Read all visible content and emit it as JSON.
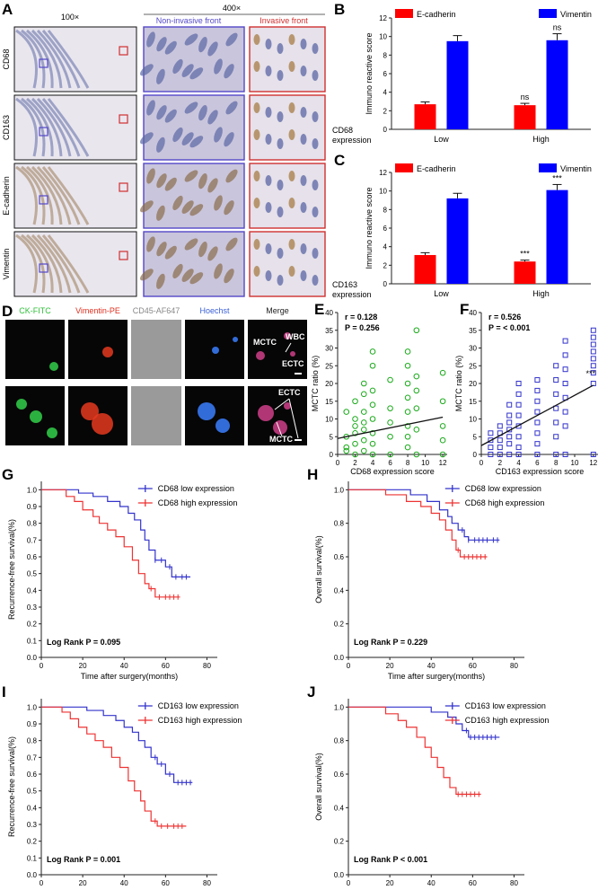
{
  "panel_letters": [
    "A",
    "B",
    "C",
    "D",
    "E",
    "F",
    "G",
    "H",
    "I",
    "J"
  ],
  "panel_a": {
    "header_low": "100×",
    "header_high": "400×",
    "sub_noninvasive": "Non-invasive front",
    "sub_invasive": "Invasive front",
    "rows": [
      "CD68",
      "CD163",
      "E-cadherin",
      "Vimentin"
    ],
    "colors": {
      "tissue_bg": "#e9e6ee",
      "tissue_blue": "#5f6aa6",
      "tissue_brown": "#9a7a55",
      "box_blue": "#5448c8",
      "box_red": "#d03030"
    }
  },
  "panel_d": {
    "channels": [
      "CK-FITC",
      "Vimentin-PE",
      "CD45-AF647",
      "Hoechst",
      "Merge"
    ],
    "channel_colors": [
      "#2fbf3a",
      "#e03020",
      "#888888",
      "#3a5fd8",
      "#222222"
    ],
    "labels_row1": [
      "WBC",
      "MCTC",
      "ECTC"
    ],
    "labels_row2": [
      "ECTC",
      "MCTC"
    ]
  },
  "chart_data": [
    {
      "id": "B",
      "type": "bar",
      "categories": [
        "Low",
        "High"
      ],
      "series": [
        {
          "name": "E-cadherin",
          "color": "#ff0000",
          "values": [
            2.7,
            2.6
          ],
          "errors": [
            0.25,
            0.2
          ]
        },
        {
          "name": "Vimentin",
          "color": "#0000ff",
          "values": [
            9.5,
            9.6
          ],
          "errors": [
            0.6,
            0.7
          ]
        }
      ],
      "annotations": [
        {
          "series": 1,
          "cat": 1,
          "text": "ns"
        },
        {
          "series": 0,
          "cat": 1,
          "text": "ns"
        }
      ],
      "ylabel": "Immuno reactive score",
      "xlabel": "CD68 expression",
      "ylim": [
        0,
        12
      ],
      "yticks": [
        0,
        2,
        4,
        6,
        8,
        10,
        12
      ],
      "legend": "top"
    },
    {
      "id": "C",
      "type": "bar",
      "categories": [
        "Low",
        "High"
      ],
      "series": [
        {
          "name": "E-cadherin",
          "color": "#ff0000",
          "values": [
            3.1,
            2.4
          ],
          "errors": [
            0.25,
            0.15
          ]
        },
        {
          "name": "Vimentin",
          "color": "#0000ff",
          "values": [
            9.2,
            10.1
          ],
          "errors": [
            0.55,
            0.6
          ]
        }
      ],
      "annotations": [
        {
          "series": 1,
          "cat": 1,
          "text": "***"
        },
        {
          "series": 0,
          "cat": 1,
          "text": "***"
        }
      ],
      "ylabel": "Immuno reactive score",
      "xlabel": "CD163 expression",
      "ylim": [
        0,
        12
      ],
      "yticks": [
        0,
        2,
        4,
        6,
        8,
        10,
        12
      ],
      "legend": "top"
    },
    {
      "id": "E",
      "type": "scatter",
      "color": "#1aaa1a",
      "stat_r": "0.128",
      "stat_p": "0.256",
      "xlabel": "CD68 expression score",
      "ylabel": "MCTC ratio (%)",
      "xlim": [
        0,
        12.5
      ],
      "ylim": [
        0,
        40
      ],
      "xticks": [
        0,
        2,
        4,
        6,
        8,
        10,
        12
      ],
      "yticks": [
        0,
        5,
        10,
        15,
        20,
        25,
        30,
        35,
        40
      ],
      "fit": {
        "x": [
          0,
          12
        ],
        "y": [
          4.5,
          10.5
        ]
      },
      "points": [
        [
          1,
          1
        ],
        [
          1,
          5
        ],
        [
          1,
          12
        ],
        [
          1,
          2
        ],
        [
          2,
          0
        ],
        [
          2,
          3
        ],
        [
          2,
          6
        ],
        [
          2,
          10
        ],
        [
          2,
          15
        ],
        [
          2,
          8
        ],
        [
          3,
          1
        ],
        [
          3,
          4
        ],
        [
          3,
          7
        ],
        [
          3,
          12
        ],
        [
          3,
          17
        ],
        [
          3,
          20
        ],
        [
          3,
          9
        ],
        [
          4,
          0
        ],
        [
          4,
          3
        ],
        [
          4,
          6
        ],
        [
          4,
          10
        ],
        [
          4,
          14
        ],
        [
          4,
          18
        ],
        [
          4,
          25
        ],
        [
          4,
          29
        ],
        [
          6,
          0
        ],
        [
          6,
          5
        ],
        [
          6,
          9
        ],
        [
          6,
          13
        ],
        [
          6,
          21
        ],
        [
          8,
          2
        ],
        [
          8,
          5
        ],
        [
          8,
          8
        ],
        [
          8,
          12
        ],
        [
          8,
          16
        ],
        [
          8,
          20
        ],
        [
          8,
          25
        ],
        [
          8,
          29
        ],
        [
          9,
          0
        ],
        [
          9,
          7
        ],
        [
          9,
          13
        ],
        [
          9,
          18
        ],
        [
          9,
          22
        ],
        [
          9,
          35
        ],
        [
          12,
          0
        ],
        [
          12,
          4
        ],
        [
          12,
          8
        ],
        [
          12,
          15
        ],
        [
          12,
          23
        ]
      ]
    },
    {
      "id": "F",
      "type": "scatter",
      "color": "#3333cc",
      "stat_r": "0.526",
      "stat_p": "< 0.001",
      "annotation": "***",
      "xlabel": "CD163 expression score",
      "ylabel": "MCTC ratio (%)",
      "xlim": [
        0,
        12.5
      ],
      "ylim": [
        0,
        40
      ],
      "xticks": [
        0,
        2,
        4,
        6,
        8,
        10,
        12
      ],
      "yticks": [
        0,
        5,
        10,
        15,
        20,
        25,
        30,
        35,
        40
      ],
      "fit": {
        "x": [
          0,
          12
        ],
        "y": [
          2.5,
          19.5
        ]
      },
      "points": [
        [
          1,
          0
        ],
        [
          1,
          2
        ],
        [
          1,
          4
        ],
        [
          1,
          6
        ],
        [
          2,
          0
        ],
        [
          2,
          2
        ],
        [
          2,
          4
        ],
        [
          2,
          6
        ],
        [
          2,
          8
        ],
        [
          3,
          0
        ],
        [
          3,
          3
        ],
        [
          3,
          5
        ],
        [
          3,
          7
        ],
        [
          3,
          9
        ],
        [
          3,
          11
        ],
        [
          3,
          14
        ],
        [
          4,
          0
        ],
        [
          4,
          2
        ],
        [
          4,
          5
        ],
        [
          4,
          8
        ],
        [
          4,
          11
        ],
        [
          4,
          14
        ],
        [
          4,
          17
        ],
        [
          4,
          20
        ],
        [
          6,
          0
        ],
        [
          6,
          3
        ],
        [
          6,
          6
        ],
        [
          6,
          9
        ],
        [
          6,
          12
        ],
        [
          6,
          15
        ],
        [
          6,
          18
        ],
        [
          6,
          21
        ],
        [
          8,
          0
        ],
        [
          8,
          5
        ],
        [
          8,
          9
        ],
        [
          8,
          13
        ],
        [
          8,
          17
        ],
        [
          8,
          21
        ],
        [
          8,
          25
        ],
        [
          9,
          0
        ],
        [
          9,
          8
        ],
        [
          9,
          12
        ],
        [
          9,
          16
        ],
        [
          9,
          20
        ],
        [
          9,
          24
        ],
        [
          9,
          28
        ],
        [
          9,
          32
        ],
        [
          12,
          0
        ],
        [
          12,
          20
        ],
        [
          12,
          23
        ],
        [
          12,
          25
        ],
        [
          12,
          27
        ],
        [
          12,
          29
        ],
        [
          12,
          31
        ],
        [
          12,
          33
        ],
        [
          12,
          35
        ]
      ]
    },
    {
      "id": "G",
      "type": "line",
      "ylabel": "Recurrence-free survival(%)",
      "xlabel": "Time after surgery(months)",
      "xlim": [
        0,
        85
      ],
      "ylim": [
        0,
        1.05
      ],
      "xticks": [
        0,
        20,
        40,
        60,
        80
      ],
      "yticks": [
        0,
        0.1,
        0.2,
        0.3,
        0.4,
        0.5,
        0.6,
        0.7,
        0.8,
        0.9,
        1.0
      ],
      "logrank": "Log Rank P = 0.095",
      "series": [
        {
          "name": "CD68 low expression",
          "color": "#3333cc",
          "steps": [
            [
              0,
              1
            ],
            [
              18,
              0.98
            ],
            [
              25,
              0.96
            ],
            [
              32,
              0.93
            ],
            [
              38,
              0.9
            ],
            [
              42,
              0.86
            ],
            [
              45,
              0.82
            ],
            [
              48,
              0.76
            ],
            [
              50,
              0.7
            ],
            [
              52,
              0.64
            ],
            [
              55,
              0.58
            ],
            [
              60,
              0.54
            ],
            [
              63,
              0.48
            ],
            [
              72,
              0.48
            ]
          ],
          "censor": [
            55,
            58,
            62,
            65,
            68,
            70
          ]
        },
        {
          "name": "CD68 high expression",
          "color": "#ee3333",
          "steps": [
            [
              0,
              1
            ],
            [
              12,
              0.96
            ],
            [
              16,
              0.93
            ],
            [
              20,
              0.88
            ],
            [
              25,
              0.84
            ],
            [
              28,
              0.8
            ],
            [
              32,
              0.76
            ],
            [
              36,
              0.72
            ],
            [
              40,
              0.66
            ],
            [
              44,
              0.58
            ],
            [
              47,
              0.5
            ],
            [
              50,
              0.44
            ],
            [
              52,
              0.41
            ],
            [
              55,
              0.36
            ],
            [
              67,
              0.36
            ]
          ],
          "censor": [
            53,
            57,
            60,
            62,
            64,
            66
          ]
        }
      ]
    },
    {
      "id": "H",
      "type": "line",
      "ylabel": "Overall survival(%)",
      "xlabel": "Time after surgery(months)",
      "xlim": [
        0,
        85
      ],
      "ylim": [
        0,
        1.05
      ],
      "xticks": [
        0,
        20,
        40,
        60,
        80
      ],
      "yticks": [
        0,
        0.2,
        0.4,
        0.6,
        0.8,
        1.0
      ],
      "logrank": "Log Rank P = 0.229",
      "series": [
        {
          "name": "CD68 low expression",
          "color": "#3333cc",
          "steps": [
            [
              0,
              1
            ],
            [
              30,
              0.97
            ],
            [
              38,
              0.93
            ],
            [
              44,
              0.88
            ],
            [
              48,
              0.84
            ],
            [
              50,
              0.8
            ],
            [
              53,
              0.76
            ],
            [
              56,
              0.72
            ],
            [
              58,
              0.7
            ],
            [
              73,
              0.7
            ]
          ],
          "censor": [
            55,
            58,
            61,
            63,
            65,
            67,
            70,
            72
          ]
        },
        {
          "name": "CD68 high expression",
          "color": "#ee3333",
          "steps": [
            [
              0,
              1
            ],
            [
              18,
              0.97
            ],
            [
              28,
              0.93
            ],
            [
              35,
              0.9
            ],
            [
              40,
              0.86
            ],
            [
              44,
              0.82
            ],
            [
              47,
              0.76
            ],
            [
              50,
              0.7
            ],
            [
              52,
              0.64
            ],
            [
              54,
              0.6
            ],
            [
              67,
              0.6
            ]
          ],
          "censor": [
            53,
            56,
            58,
            60,
            62,
            64,
            66
          ]
        }
      ]
    },
    {
      "id": "I",
      "type": "line",
      "ylabel": "Recurrence-free survival(%)",
      "xlabel": "Time after surgery(months)",
      "xlim": [
        0,
        85
      ],
      "ylim": [
        0,
        1.05
      ],
      "xticks": [
        0,
        20,
        40,
        60,
        80
      ],
      "yticks": [
        0,
        0.1,
        0.2,
        0.3,
        0.4,
        0.5,
        0.6,
        0.7,
        0.8,
        0.9,
        1.0
      ],
      "logrank": "Log Rank P = 0.001",
      "series": [
        {
          "name": "CD163 low expression",
          "color": "#3333cc",
          "steps": [
            [
              0,
              1
            ],
            [
              22,
              0.98
            ],
            [
              30,
              0.95
            ],
            [
              36,
              0.92
            ],
            [
              40,
              0.88
            ],
            [
              44,
              0.85
            ],
            [
              47,
              0.8
            ],
            [
              50,
              0.76
            ],
            [
              53,
              0.7
            ],
            [
              56,
              0.66
            ],
            [
              60,
              0.6
            ],
            [
              64,
              0.55
            ],
            [
              73,
              0.55
            ]
          ],
          "censor": [
            55,
            58,
            62,
            66,
            68,
            70,
            72
          ]
        },
        {
          "name": "CD163 high expression",
          "color": "#ee3333",
          "steps": [
            [
              0,
              1
            ],
            [
              10,
              0.97
            ],
            [
              14,
              0.93
            ],
            [
              18,
              0.88
            ],
            [
              22,
              0.84
            ],
            [
              26,
              0.8
            ],
            [
              30,
              0.76
            ],
            [
              34,
              0.7
            ],
            [
              38,
              0.64
            ],
            [
              42,
              0.56
            ],
            [
              45,
              0.5
            ],
            [
              48,
              0.44
            ],
            [
              50,
              0.38
            ],
            [
              53,
              0.32
            ],
            [
              56,
              0.29
            ],
            [
              70,
              0.29
            ]
          ],
          "censor": [
            55,
            58,
            61,
            64,
            66,
            68
          ]
        }
      ]
    },
    {
      "id": "J",
      "type": "line",
      "ylabel": "Overall survival(%)",
      "xlabel": "Time after surgery(months)",
      "xlim": [
        0,
        85
      ],
      "ylim": [
        0,
        1.05
      ],
      "xticks": [
        0,
        20,
        40,
        60,
        80
      ],
      "yticks": [
        0,
        0.2,
        0.4,
        0.6,
        0.8,
        1.0
      ],
      "logrank": "Log Rank P < 0.001",
      "series": [
        {
          "name": "CD163 low expression",
          "color": "#3333cc",
          "steps": [
            [
              0,
              1
            ],
            [
              40,
              0.97
            ],
            [
              48,
              0.94
            ],
            [
              52,
              0.9
            ],
            [
              55,
              0.86
            ],
            [
              58,
              0.82
            ],
            [
              73,
              0.82
            ]
          ],
          "censor": [
            57,
            59,
            61,
            63,
            65,
            67,
            69,
            71
          ]
        },
        {
          "name": "CD163 high expression",
          "color": "#ee3333",
          "steps": [
            [
              0,
              1
            ],
            [
              18,
              0.96
            ],
            [
              24,
              0.92
            ],
            [
              28,
              0.88
            ],
            [
              33,
              0.82
            ],
            [
              37,
              0.76
            ],
            [
              40,
              0.7
            ],
            [
              43,
              0.64
            ],
            [
              46,
              0.58
            ],
            [
              49,
              0.52
            ],
            [
              52,
              0.48
            ],
            [
              64,
              0.48
            ]
          ],
          "censor": [
            53,
            55,
            57,
            59,
            61,
            63
          ]
        }
      ]
    }
  ]
}
